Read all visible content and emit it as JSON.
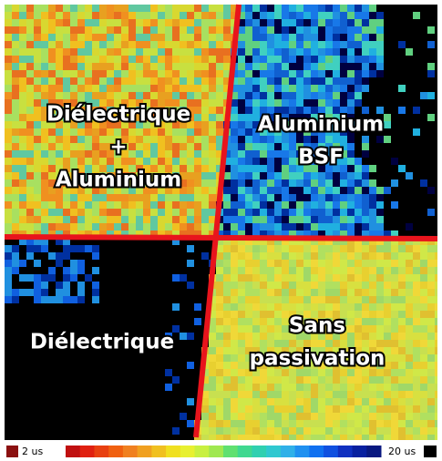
{
  "regions": [
    {
      "lines": [
        "Diélectrique",
        "+",
        "Aluminium"
      ]
    },
    {
      "lines": [
        "Aluminium",
        "BSF"
      ]
    },
    {
      "lines": [
        "Diélectrique"
      ]
    },
    {
      "lines": [
        "Sans",
        "passivation"
      ]
    }
  ],
  "colorbar": {
    "min_label": "2 us",
    "max_label": "20 us"
  }
}
